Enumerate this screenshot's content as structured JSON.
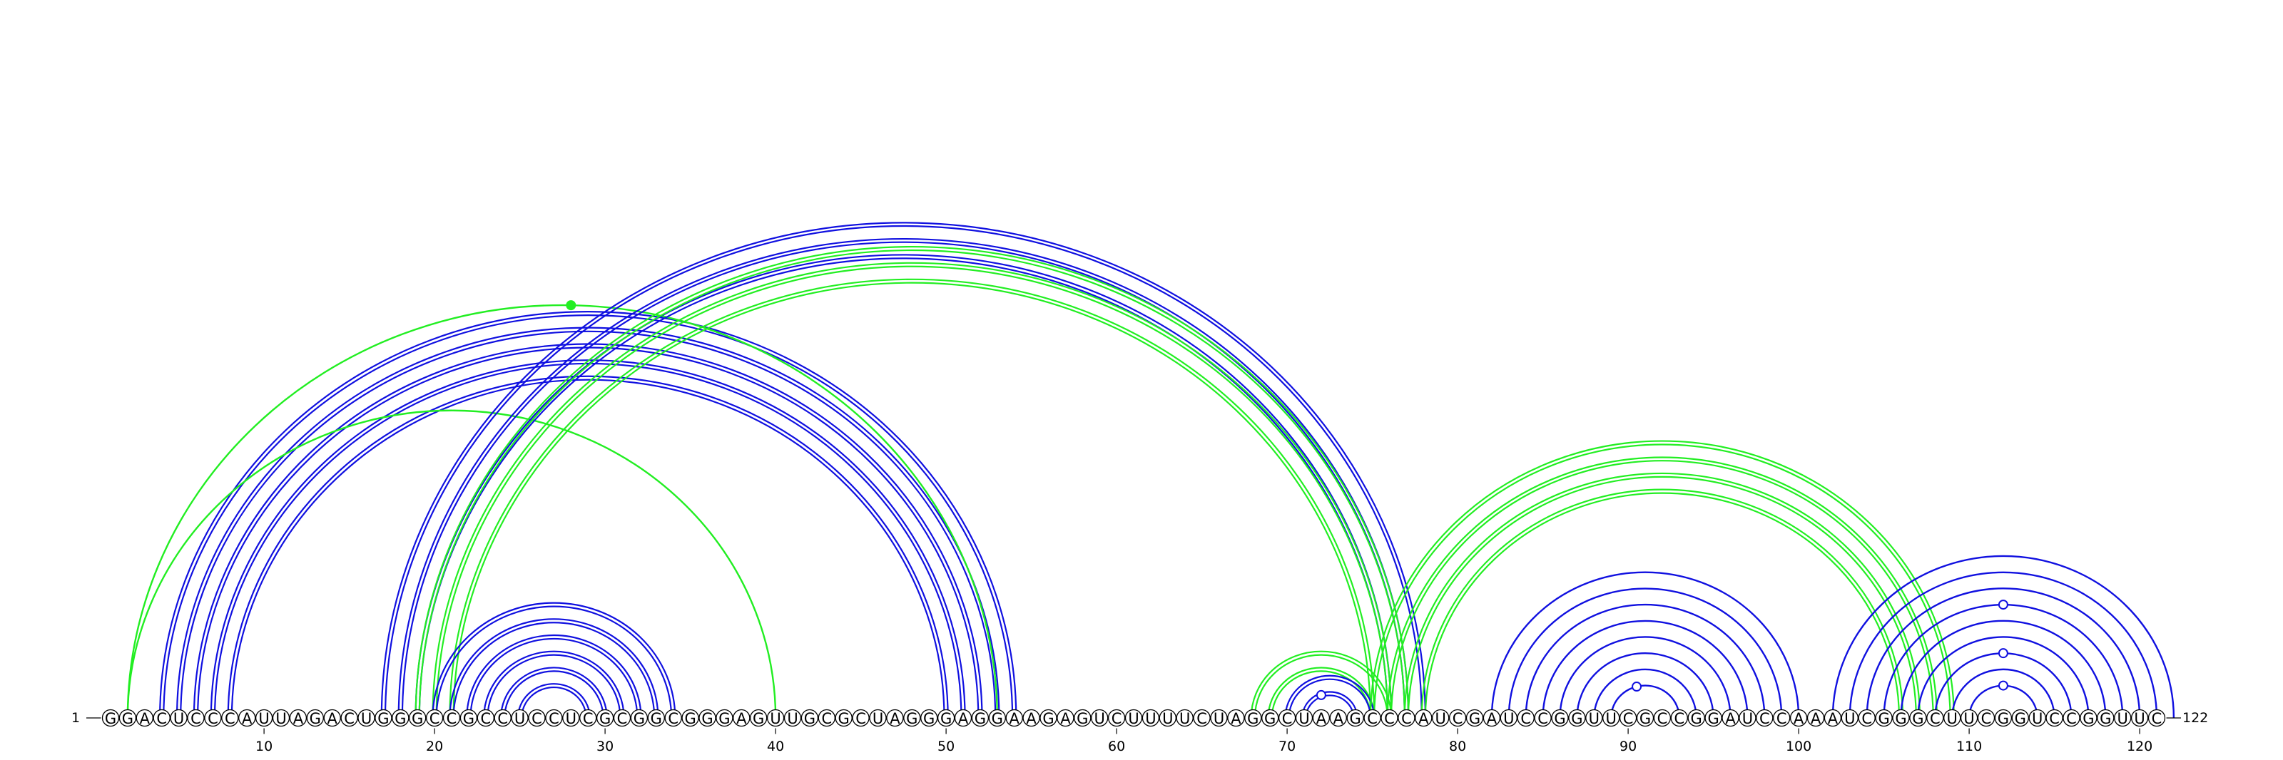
{
  "diagram": {
    "sequence": "GGACUCCCAUUAGACUGGGCCGCCUCCUCGCGGCGGGAGUUGCGCUAGGGAGGAAGAGUCUUUUCUAGGCUAAGCCCAUCGAUCCGGUUCGCCGGAUCCAAAUCGGGCUUCGGUCCGGUUC",
    "start_label": "1",
    "end_label": "122",
    "tick_labels": [
      "10",
      "20",
      "30",
      "40",
      "50",
      "60",
      "70",
      "80",
      "90",
      "100",
      "110",
      "120"
    ],
    "colors": {
      "blue": "#1010e0",
      "green": "#22ee22",
      "marker_blue": "#1010e0",
      "marker_green": "#22ee22"
    },
    "arc_groups": [
      {
        "color": "blue",
        "style": "double",
        "pairs": [
          [
            4,
            54
          ],
          [
            5,
            53
          ],
          [
            6,
            52
          ],
          [
            7,
            51
          ],
          [
            8,
            50
          ]
        ]
      },
      {
        "color": "green",
        "style": "single",
        "pairs": [
          [
            2,
            53
          ]
        ]
      },
      {
        "color": "green",
        "style": "single",
        "pairs": [
          [
            2,
            40
          ]
        ]
      },
      {
        "color": "blue",
        "style": "double",
        "pairs": [
          [
            17,
            78
          ],
          [
            18,
            77
          ],
          [
            19,
            76
          ]
        ]
      },
      {
        "color": "green",
        "style": "double",
        "pairs": [
          [
            19,
            77
          ],
          [
            20,
            76
          ],
          [
            21,
            75
          ]
        ]
      },
      {
        "color": "blue",
        "style": "double",
        "pairs": [
          [
            20,
            34
          ],
          [
            21,
            33
          ],
          [
            22,
            32
          ],
          [
            23,
            31
          ],
          [
            24,
            30
          ],
          [
            25,
            29
          ]
        ]
      },
      {
        "color": "green",
        "style": "double",
        "pairs": [
          [
            68,
            76
          ],
          [
            69,
            75
          ]
        ]
      },
      {
        "color": "blue",
        "style": "double",
        "pairs": [
          [
            70,
            75
          ],
          [
            71,
            74
          ]
        ]
      },
      {
        "color": "green",
        "style": "double",
        "pairs": [
          [
            75,
            109
          ],
          [
            76,
            108
          ],
          [
            77,
            107
          ],
          [
            78,
            106
          ]
        ]
      },
      {
        "color": "blue",
        "style": "single",
        "pairs": [
          [
            82,
            100
          ],
          [
            83,
            99
          ],
          [
            84,
            98
          ],
          [
            85,
            97
          ],
          [
            86,
            96
          ],
          [
            87,
            95
          ],
          [
            88,
            94
          ],
          [
            89,
            93
          ]
        ]
      },
      {
        "color": "blue",
        "style": "single",
        "pairs": [
          [
            102,
            122
          ],
          [
            103,
            121
          ],
          [
            104,
            120
          ],
          [
            105,
            119
          ],
          [
            106,
            118
          ],
          [
            107,
            117
          ],
          [
            108,
            116
          ],
          [
            109,
            115
          ],
          [
            110,
            114
          ]
        ]
      }
    ],
    "markers": [
      {
        "pos": 28,
        "color": "green",
        "filled": true,
        "on_arc": [
          2,
          53
        ]
      },
      {
        "pos": 72,
        "color": "blue",
        "filled": false,
        "on_arc": [
          71,
          74
        ]
      },
      {
        "pos": 90.5,
        "color": "blue",
        "filled": false,
        "on_arc": [
          89,
          93
        ]
      },
      {
        "pos": 112,
        "color": "blue",
        "filled": false,
        "on_arc": [
          110,
          114
        ]
      },
      {
        "pos": 112,
        "color": "blue",
        "filled": false,
        "on_arc": [
          108,
          116
        ]
      },
      {
        "pos": 112,
        "color": "blue",
        "filled": false,
        "on_arc": [
          105,
          119
        ]
      }
    ]
  }
}
